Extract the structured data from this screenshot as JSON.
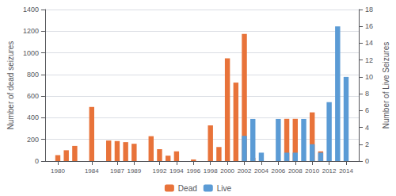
{
  "chart_data": {
    "type": "bar",
    "x": [
      1980,
      1981,
      1982,
      1983,
      1984,
      1985,
      1986,
      1987,
      1988,
      1989,
      1990,
      1991,
      1992,
      1993,
      1994,
      1995,
      1996,
      1997,
      1998,
      1999,
      2000,
      2001,
      2002,
      2003,
      2004,
      2005,
      2006,
      2007,
      2008,
      2009,
      2010,
      2011,
      2012,
      2013,
      2014
    ],
    "series": [
      {
        "name": "Dead",
        "color": "#E8733A",
        "axis": "y",
        "values": [
          55,
          100,
          140,
          0,
          500,
          0,
          190,
          185,
          175,
          160,
          0,
          230,
          110,
          50,
          90,
          0,
          15,
          0,
          330,
          130,
          950,
          725,
          1175,
          30,
          0,
          0,
          0,
          390,
          390,
          0,
          450,
          90,
          0,
          0,
          0
        ]
      },
      {
        "name": "Live",
        "color": "#5B9BD5",
        "axis": "y2",
        "values": [
          0,
          0,
          0,
          0,
          0,
          0,
          0,
          0,
          0,
          0,
          0,
          0,
          0,
          0,
          0,
          0,
          0,
          0,
          0,
          0,
          0,
          0,
          3,
          5,
          1,
          0,
          5,
          1,
          1,
          5,
          2,
          1,
          7,
          16,
          10
        ]
      }
    ],
    "ylabel": "Number of dead seizures",
    "y2label": "Number of Live Seizures",
    "xlim": [
      1978.5,
      2015.5
    ],
    "xticks": [
      1980,
      1984,
      1987,
      1989,
      1992,
      1994,
      1996,
      1998,
      2000,
      2002,
      2004,
      2006,
      2008,
      2010,
      2012,
      2014
    ],
    "ylim": [
      0,
      1400
    ],
    "yticks": [
      0,
      200,
      400,
      600,
      800,
      1000,
      1200,
      1400
    ],
    "y2lim": [
      0,
      18
    ],
    "y2ticks": [
      0,
      2,
      4,
      6,
      8,
      10,
      12,
      14,
      16,
      18
    ],
    "grid": true,
    "legend": "bottom"
  }
}
